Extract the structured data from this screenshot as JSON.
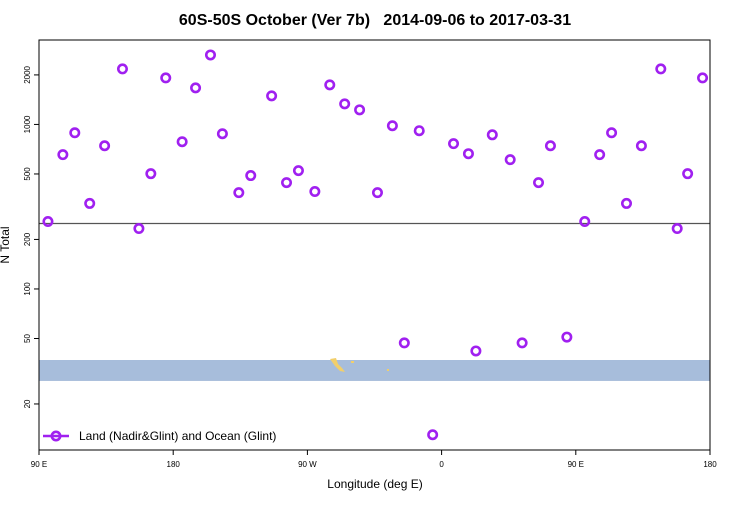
{
  "chart_data": {
    "type": "scatter",
    "title": "60S-50S October (Ver 7b)   2014-09-06 to 2017-03-31",
    "xlabel": "Longitude (deg E)",
    "ylabel": "N Total",
    "xlim": [
      90,
      540
    ],
    "xticks": [
      {
        "value": 90,
        "label": "90 E"
      },
      180,
      {
        "value": 270,
        "label": "90 W"
      },
      {
        "value": 360,
        "label": "0"
      },
      {
        "value": 450,
        "label": "90 E"
      },
      {
        "value": 540,
        "label": "180"
      }
    ],
    "ylim": [
      10.5,
      3260
    ],
    "log_y": true,
    "yticks": [
      20,
      50,
      100,
      200,
      500,
      1000,
      2000
    ],
    "legend": "bottom-left",
    "hline": {
      "value": 250,
      "color": "#555555"
    },
    "band": {
      "range": [
        27.6,
        37
      ],
      "color": "#a7bddb"
    },
    "x": [
      96,
      106,
      114,
      124,
      134,
      146,
      157,
      165,
      175,
      186,
      195,
      205,
      213,
      224,
      232,
      246,
      256,
      264,
      275,
      285,
      295,
      305,
      317,
      327,
      335,
      345,
      354,
      368,
      378,
      383,
      394,
      406,
      414,
      425,
      433,
      444,
      456,
      466,
      474,
      484,
      494,
      507,
      518,
      525,
      535
    ],
    "series": [
      {
        "name": "Land (Nadir&Glint) and Ocean (Glint)",
        "color": "#a020f0",
        "values": [
          257,
          655,
          890,
          331,
          742,
          2175,
          233,
          502,
          1918,
          785,
          1668,
          2645,
          878,
          385,
          489,
          1492,
          443,
          524,
          391,
          1740,
          1334,
          1227,
          385,
          982,
          47,
          916,
          13,
          764,
          664,
          42,
          865,
          611,
          47,
          443,
          742,
          51,
          257,
          655,
          890,
          331,
          742,
          2175,
          233,
          502,
          1918
        ]
      }
    ]
  }
}
